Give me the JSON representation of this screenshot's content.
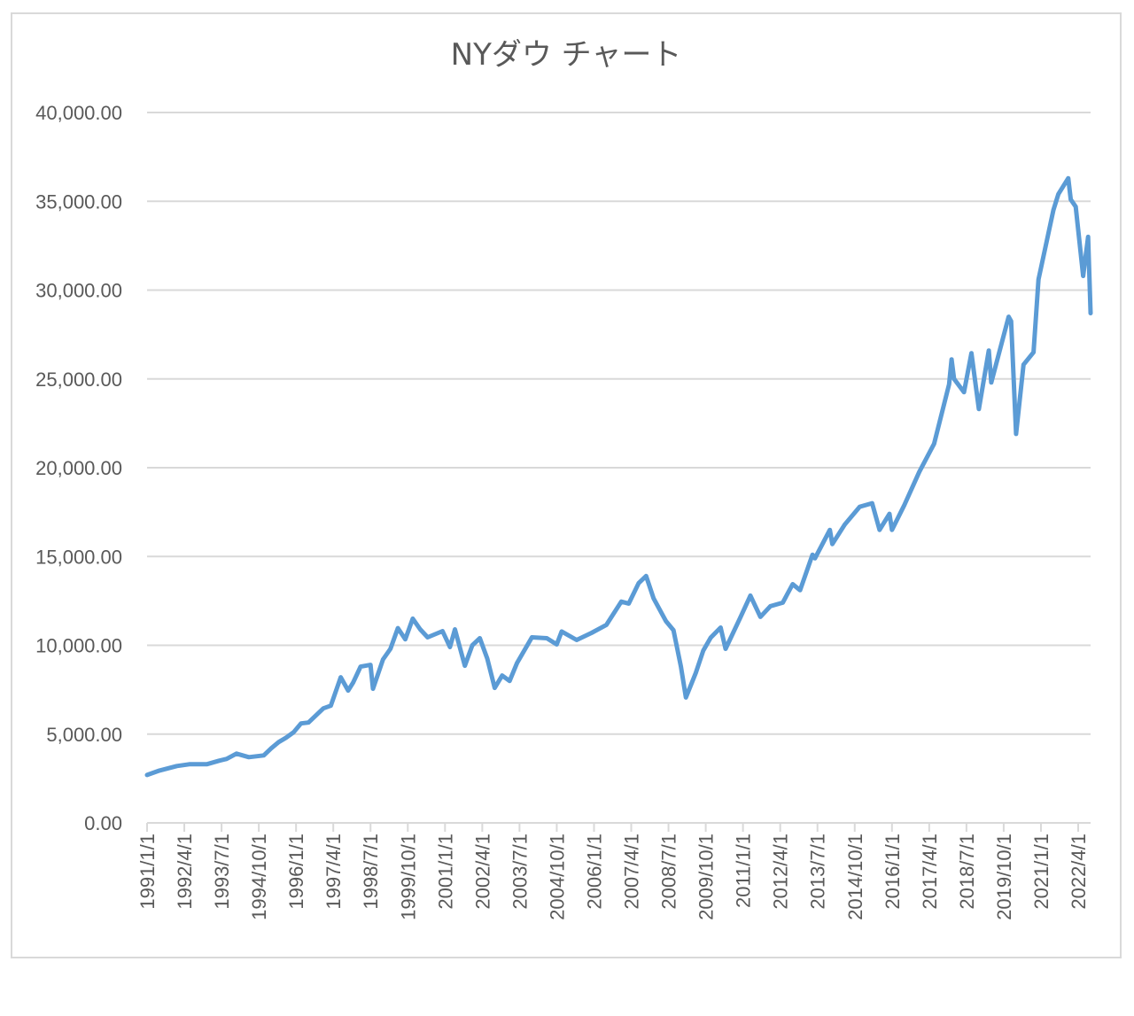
{
  "chart_data": {
    "type": "line",
    "title": "NYダウ チャート",
    "xlabel": "",
    "ylabel": "",
    "ylim": [
      0,
      40000
    ],
    "grid": true,
    "legend": "none",
    "y_ticks": [
      "0.00",
      "5,000.00",
      "10,000.00",
      "15,000.00",
      "20,000.00",
      "25,000.00",
      "30,000.00",
      "35,000.00",
      "40,000.00"
    ],
    "x_ticks": [
      "1991/1/1",
      "1992/4/1",
      "1993/7/1",
      "1994/10/1",
      "1996/1/1",
      "1997/4/1",
      "1998/7/1",
      "1999/10/1",
      "2001/1/1",
      "2002/4/1",
      "2003/7/1",
      "2004/10/1",
      "2006/1/1",
      "2007/4/1",
      "2008/7/1",
      "2009/10/1",
      "2011/1/1",
      "2012/4/1",
      "2013/7/1",
      "2014/10/1",
      "2016/1/1",
      "2017/4/1",
      "2018/7/1",
      "2019/10/1",
      "2021/1/1",
      "2022/4/1"
    ],
    "colors": {
      "line": "#5b9bd5",
      "grid": "#d9d9d9",
      "text": "#595959"
    },
    "series": [
      {
        "x": [
          "1991/1",
          "1991/6",
          "1992/1",
          "1992/6",
          "1993/1",
          "1993/6",
          "1993/9",
          "1994/1",
          "1994/6",
          "1994/12",
          "1995/3",
          "1995/6",
          "1995/9",
          "1995/12",
          "1996/3",
          "1996/6",
          "1996/12",
          "1997/3",
          "1997/7",
          "1997/10",
          "1997/12",
          "1998/3",
          "1998/7",
          "1998/8",
          "1998/12",
          "1999/3",
          "1999/6",
          "1999/9",
          "1999/12",
          "2000/3",
          "2000/6",
          "2000/12",
          "2001/3",
          "2001/5",
          "2001/9",
          "2001/12",
          "2002/3",
          "2002/6",
          "2002/9",
          "2002/12",
          "2003/3",
          "2003/6",
          "2003/12",
          "2004/6",
          "2004/10",
          "2004/12",
          "2005/6",
          "2005/12",
          "2006/6",
          "2006/12",
          "2007/3",
          "2007/7",
          "2007/10",
          "2008/1",
          "2008/6",
          "2008/9",
          "2008/12",
          "2009/2",
          "2009/6",
          "2009/9",
          "2009/12",
          "2010/4",
          "2010/6",
          "2010/12",
          "2011/4",
          "2011/8",
          "2011/12",
          "2012/5",
          "2012/9",
          "2012/12",
          "2013/5",
          "2013/6",
          "2013/12",
          "2014/1",
          "2014/6",
          "2014/12",
          "2015/5",
          "2015/8",
          "2015/12",
          "2016/1",
          "2016/6",
          "2016/12",
          "2017/6",
          "2017/12",
          "2018/1",
          "2018/2",
          "2018/6",
          "2018/9",
          "2018/12",
          "2019/4",
          "2019/5",
          "2019/12",
          "2020/1",
          "2020/3",
          "2020/6",
          "2020/10",
          "2020/12",
          "2021/6",
          "2021/8",
          "2021/12",
          "2022/1",
          "2022/3",
          "2022/6",
          "2022/8",
          "2022/9"
        ],
        "values": [
          2700,
          2950,
          3200,
          3300,
          3300,
          3500,
          3600,
          3900,
          3700,
          3800,
          4200,
          4550,
          4800,
          5100,
          5600,
          5650,
          6450,
          6600,
          8200,
          7450,
          7900,
          8800,
          8900,
          7550,
          9200,
          9800,
          10970,
          10340,
          11500,
          10900,
          10450,
          10800,
          9900,
          10900,
          8850,
          10000,
          10400,
          9250,
          7600,
          8300,
          7990,
          9000,
          10450,
          10400,
          10050,
          10780,
          10300,
          10700,
          11150,
          12460,
          12350,
          13500,
          13900,
          12650,
          11350,
          10850,
          8800,
          7060,
          8450,
          9700,
          10430,
          11000,
          9800,
          11580,
          12800,
          11600,
          12200,
          12400,
          13440,
          13100,
          15100,
          14900,
          16500,
          15700,
          16800,
          17800,
          18000,
          16500,
          17400,
          16500,
          17900,
          19760,
          21350,
          24700,
          26100,
          25000,
          24250,
          26450,
          23300,
          26600,
          24800,
          28500,
          28250,
          21900,
          25800,
          26500,
          30600,
          34500,
          35400,
          36300,
          35100,
          34700,
          30800,
          33000,
          28700
        ]
      }
    ]
  }
}
